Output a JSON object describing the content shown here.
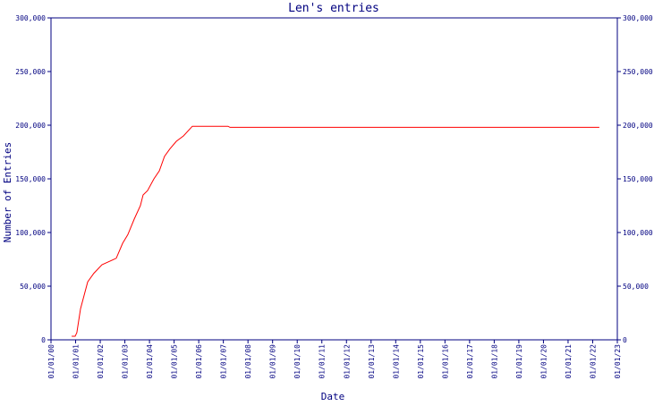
{
  "chart_data": {
    "type": "line",
    "title": "Len's entries",
    "x_label": "Date",
    "y_label": "Number of Entries",
    "x": [
      0.84,
      0.98,
      1.05,
      1.2,
      1.49,
      1.74,
      2.07,
      2.36,
      2.65,
      2.91,
      3.12,
      3.38,
      3.63,
      3.74,
      3.92,
      4.18,
      4.4,
      4.61,
      4.83,
      5.09,
      5.38,
      5.74,
      7.19,
      7.27,
      22.27
    ],
    "series": [
      {
        "name": "Len's entries",
        "color": "#ff0000",
        "values": [
          3300,
          3300,
          6700,
          29000,
          54000,
          62000,
          70000,
          73000,
          76000,
          90000,
          98000,
          112500,
          125000,
          135000,
          139000,
          150000,
          157500,
          171000,
          178000,
          185000,
          190000,
          199000,
          199000,
          198000,
          198000
        ]
      }
    ],
    "xlim": [
      0,
      23
    ],
    "xticks": [
      {
        "value": 0,
        "label": "01/01/00"
      },
      {
        "value": 1,
        "label": "01/01/01"
      },
      {
        "value": 2,
        "label": "01/01/02"
      },
      {
        "value": 3,
        "label": "01/01/03"
      },
      {
        "value": 4,
        "label": "01/01/04"
      },
      {
        "value": 5,
        "label": "01/01/05"
      },
      {
        "value": 6,
        "label": "01/01/06"
      },
      {
        "value": 7,
        "label": "01/01/07"
      },
      {
        "value": 8,
        "label": "01/01/08"
      },
      {
        "value": 9,
        "label": "01/01/09"
      },
      {
        "value": 10,
        "label": "01/01/10"
      },
      {
        "value": 11,
        "label": "01/01/11"
      },
      {
        "value": 12,
        "label": "01/01/12"
      },
      {
        "value": 13,
        "label": "01/01/13"
      },
      {
        "value": 14,
        "label": "01/01/14"
      },
      {
        "value": 15,
        "label": "01/01/15"
      },
      {
        "value": 16,
        "label": "01/01/16"
      },
      {
        "value": 17,
        "label": "01/01/17"
      },
      {
        "value": 18,
        "label": "01/01/18"
      },
      {
        "value": 19,
        "label": "01/01/19"
      },
      {
        "value": 20,
        "label": "01/01/20"
      },
      {
        "value": 21,
        "label": "01/01/21"
      },
      {
        "value": 22,
        "label": "01/01/22"
      },
      {
        "value": 23,
        "label": "01/01/23"
      }
    ],
    "ylim": [
      0,
      300000
    ],
    "yticks": [
      0,
      {
        "value": 50000,
        "label": "50,000"
      },
      {
        "value": 100000,
        "label": "100,000"
      },
      {
        "value": 150000,
        "label": "150,000"
      },
      {
        "value": 200000,
        "label": "200,000"
      },
      {
        "value": 250000,
        "label": "250,000"
      },
      {
        "value": 300000,
        "label": "300,000"
      }
    ],
    "y2lim": [
      0,
      300000
    ],
    "y2ticks": [
      0,
      {
        "value": 50000,
        "label": "50,000"
      },
      {
        "value": 100000,
        "label": "100,000"
      },
      {
        "value": 150000,
        "label": "150,000"
      },
      {
        "value": 200000,
        "label": "200,000"
      },
      {
        "value": 250000,
        "label": "250,000"
      },
      {
        "value": 300000,
        "label": "300,000"
      }
    ],
    "axis_color": "#000080",
    "grid": false
  }
}
